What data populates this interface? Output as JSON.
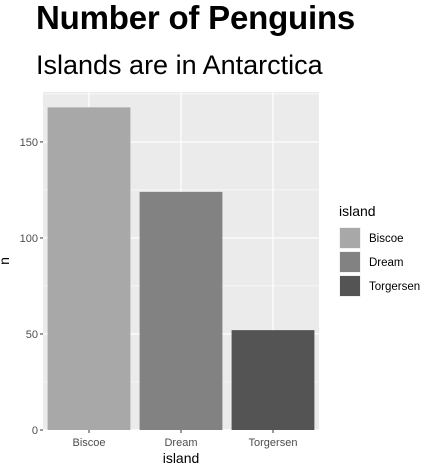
{
  "chart_data": {
    "type": "bar",
    "title": "Number of Penguins",
    "subtitle": "Islands are in Antarctica",
    "xlabel": "island",
    "ylabel": "n",
    "categories": [
      "Biscoe",
      "Dream",
      "Torgersen"
    ],
    "values": [
      168,
      124,
      52
    ],
    "ylim": [
      0,
      176
    ],
    "yticks": [
      0,
      50,
      100,
      150
    ],
    "grid": true,
    "legend": {
      "title": "island",
      "position": "right",
      "entries": [
        "Biscoe",
        "Dream",
        "Torgersen"
      ]
    },
    "colors": [
      "#a8a8a8",
      "#828282",
      "#545454"
    ],
    "panel_color": "#ebebeb",
    "grid_color": "#ffffff"
  }
}
